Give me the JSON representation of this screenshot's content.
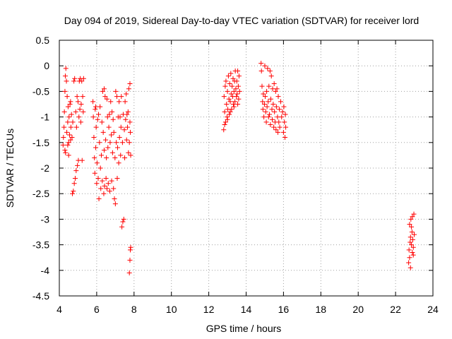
{
  "chart_data": {
    "type": "scatter",
    "title": "Day 094 of 2019, Sidereal Day-to-day VTEC variation (SDTVAR) for receiver lord",
    "xlabel": "GPS time / hours",
    "ylabel": "SDTVAR / TECUs",
    "xlim": [
      4,
      24
    ],
    "ylim": [
      -4.5,
      0.5
    ],
    "x_ticks": [
      "4",
      "6",
      "8",
      "10",
      "12",
      "14",
      "16",
      "18",
      "20",
      "22",
      "24"
    ],
    "y_ticks": [
      "0.5",
      "0",
      "-0.5",
      "-1",
      "-1.5",
      "-2",
      "-2.5",
      "-3",
      "-3.5",
      "-4",
      "-4.5"
    ],
    "grid": true,
    "marker": "+",
    "color": "#ff0000",
    "series": [
      {
        "name": "SDTVAR",
        "points": [
          [
            4.2,
            -1.55
          ],
          [
            4.22,
            -1.4
          ],
          [
            4.25,
            -1.2
          ],
          [
            4.27,
            -0.9
          ],
          [
            4.3,
            -0.5
          ],
          [
            4.3,
            -1.65
          ],
          [
            4.32,
            -0.2
          ],
          [
            4.33,
            -1.7
          ],
          [
            4.35,
            -0.05
          ],
          [
            4.38,
            -0.3
          ],
          [
            4.4,
            -1.3
          ],
          [
            4.42,
            -0.6
          ],
          [
            4.45,
            -1.1
          ],
          [
            4.47,
            -0.8
          ],
          [
            4.5,
            -1.5
          ],
          [
            4.52,
            -1.0
          ],
          [
            4.55,
            -1.35
          ],
          [
            4.57,
            -0.75
          ],
          [
            4.6,
            -1.45
          ],
          [
            4.62,
            -1.2
          ],
          [
            4.65,
            -0.95
          ],
          [
            4.68,
            -1.4
          ],
          [
            4.7,
            -2.5
          ],
          [
            4.72,
            -1.1
          ],
          [
            4.75,
            -2.45
          ],
          [
            4.78,
            -0.3
          ],
          [
            4.8,
            -2.3
          ],
          [
            4.82,
            -0.25
          ],
          [
            4.85,
            -2.2
          ],
          [
            4.88,
            -0.9
          ],
          [
            4.9,
            -2.05
          ],
          [
            4.92,
            -1.2
          ],
          [
            4.95,
            -0.6
          ],
          [
            4.97,
            -1.95
          ],
          [
            5.0,
            -0.7
          ],
          [
            5.02,
            -1.85
          ],
          [
            5.05,
            -1.0
          ],
          [
            5.07,
            -0.3
          ],
          [
            5.1,
            -0.85
          ],
          [
            5.12,
            -0.25
          ],
          [
            5.15,
            -1.1
          ],
          [
            5.17,
            -0.75
          ],
          [
            5.2,
            -0.3
          ],
          [
            5.22,
            -1.85
          ],
          [
            5.25,
            -0.6
          ],
          [
            5.28,
            -0.9
          ],
          [
            5.3,
            -0.25
          ],
          [
            4.45,
            -1.55
          ],
          [
            4.5,
            -1.75
          ],
          [
            4.6,
            -0.7
          ],
          [
            5.8,
            -0.7
          ],
          [
            5.82,
            -1.0
          ],
          [
            5.85,
            -1.4
          ],
          [
            5.88,
            -1.8
          ],
          [
            5.9,
            -2.1
          ],
          [
            5.92,
            -0.85
          ],
          [
            5.95,
            -1.6
          ],
          [
            5.97,
            -1.2
          ],
          [
            6.0,
            -2.3
          ],
          [
            6.02,
            -1.9
          ],
          [
            6.05,
            -1.05
          ],
          [
            6.08,
            -2.2
          ],
          [
            6.1,
            -0.95
          ],
          [
            6.12,
            -2.6
          ],
          [
            6.15,
            -1.5
          ],
          [
            6.18,
            -0.8
          ],
          [
            6.2,
            -2.0
          ],
          [
            6.22,
            -2.4
          ],
          [
            6.25,
            -1.75
          ],
          [
            6.28,
            -1.1
          ],
          [
            6.3,
            -2.25
          ],
          [
            6.32,
            -0.5
          ],
          [
            6.35,
            -1.3
          ],
          [
            6.38,
            -2.5
          ],
          [
            6.4,
            -1.65
          ],
          [
            6.42,
            -2.35
          ],
          [
            6.45,
            -0.6
          ],
          [
            6.48,
            -1.45
          ],
          [
            6.5,
            -2.2
          ],
          [
            6.52,
            -1.8
          ],
          [
            6.55,
            -2.4
          ],
          [
            6.58,
            -1.0
          ],
          [
            6.6,
            -1.6
          ],
          [
            6.62,
            -2.3
          ],
          [
            6.65,
            -1.2
          ],
          [
            6.68,
            -0.95
          ],
          [
            6.7,
            -2.45
          ],
          [
            6.72,
            -1.5
          ],
          [
            6.75,
            -0.7
          ],
          [
            6.78,
            -1.35
          ],
          [
            6.8,
            -2.25
          ],
          [
            6.82,
            -0.9
          ],
          [
            6.85,
            -1.7
          ],
          [
            6.88,
            -1.05
          ],
          [
            6.9,
            -2.4
          ],
          [
            6.92,
            -1.3
          ],
          [
            6.95,
            -2.6
          ],
          [
            6.98,
            -1.8
          ],
          [
            7.0,
            -2.7
          ],
          [
            7.02,
            -0.5
          ],
          [
            7.05,
            -1.5
          ],
          [
            7.08,
            -0.6
          ],
          [
            7.1,
            -2.2
          ],
          [
            7.12,
            -1.6
          ],
          [
            7.15,
            -1.0
          ],
          [
            7.18,
            -1.9
          ],
          [
            7.2,
            -0.7
          ],
          [
            7.22,
            -1.4
          ],
          [
            7.25,
            -1.0
          ],
          [
            7.28,
            -1.75
          ],
          [
            7.3,
            -1.2
          ],
          [
            7.32,
            -0.6
          ],
          [
            7.35,
            -3.15
          ],
          [
            7.38,
            -1.5
          ],
          [
            7.4,
            -3.05
          ],
          [
            7.42,
            -0.95
          ],
          [
            7.45,
            -3.0
          ],
          [
            7.48,
            -1.25
          ],
          [
            7.5,
            -1.8
          ],
          [
            7.52,
            -0.7
          ],
          [
            7.55,
            -1.05
          ],
          [
            7.58,
            -0.55
          ],
          [
            7.6,
            -1.45
          ],
          [
            7.62,
            -0.95
          ],
          [
            7.65,
            -1.2
          ],
          [
            7.68,
            -0.9
          ],
          [
            7.7,
            -1.7
          ],
          [
            7.72,
            -0.45
          ],
          [
            7.75,
            -1.5
          ],
          [
            7.78,
            -0.35
          ],
          [
            7.8,
            -1.3
          ],
          [
            7.82,
            -1.75
          ],
          [
            7.75,
            -4.05
          ],
          [
            7.78,
            -3.8
          ],
          [
            7.8,
            -3.6
          ],
          [
            7.82,
            -3.55
          ],
          [
            7.78,
            -1.1
          ],
          [
            6.4,
            -0.45
          ],
          [
            6.55,
            -0.65
          ],
          [
            5.95,
            -0.8
          ],
          [
            12.8,
            -1.25
          ],
          [
            12.82,
            -0.6
          ],
          [
            12.85,
            -0.9
          ],
          [
            12.88,
            -0.4
          ],
          [
            12.9,
            -1.1
          ],
          [
            12.92,
            -0.3
          ],
          [
            12.95,
            -0.75
          ],
          [
            12.98,
            -1.0
          ],
          [
            13.0,
            -0.5
          ],
          [
            13.02,
            -0.85
          ],
          [
            13.05,
            -0.2
          ],
          [
            13.08,
            -0.65
          ],
          [
            13.1,
            -0.95
          ],
          [
            13.12,
            -0.35
          ],
          [
            13.15,
            -0.7
          ],
          [
            13.18,
            -0.15
          ],
          [
            13.2,
            -0.55
          ],
          [
            13.22,
            -0.85
          ],
          [
            13.25,
            -0.4
          ],
          [
            13.28,
            -0.6
          ],
          [
            13.3,
            -0.25
          ],
          [
            13.32,
            -0.75
          ],
          [
            13.35,
            -0.5
          ],
          [
            13.38,
            -0.3
          ],
          [
            13.4,
            -0.7
          ],
          [
            13.42,
            -0.1
          ],
          [
            13.45,
            -0.45
          ],
          [
            13.48,
            -0.6
          ],
          [
            13.5,
            -0.3
          ],
          [
            13.52,
            -0.55
          ],
          [
            13.55,
            -0.1
          ],
          [
            13.58,
            -0.4
          ],
          [
            13.6,
            -0.65
          ],
          [
            13.62,
            -0.2
          ],
          [
            13.65,
            -0.5
          ],
          [
            12.85,
            -1.15
          ],
          [
            13.0,
            -1.05
          ],
          [
            13.15,
            -0.9
          ],
          [
            13.35,
            -0.8
          ],
          [
            13.55,
            -0.75
          ],
          [
            14.8,
            0.05
          ],
          [
            14.82,
            -0.1
          ],
          [
            14.85,
            -0.4
          ],
          [
            14.88,
            -0.7
          ],
          [
            14.9,
            -0.85
          ],
          [
            14.92,
            -0.55
          ],
          [
            14.95,
            -1.0
          ],
          [
            14.98,
            -0.75
          ],
          [
            15.0,
            0.0
          ],
          [
            15.02,
            -0.6
          ],
          [
            15.05,
            -0.9
          ],
          [
            15.08,
            -1.1
          ],
          [
            15.1,
            -0.5
          ],
          [
            15.12,
            -0.8
          ],
          [
            15.15,
            -0.05
          ],
          [
            15.18,
            -0.7
          ],
          [
            15.2,
            -1.0
          ],
          [
            15.22,
            -0.4
          ],
          [
            15.25,
            -0.95
          ],
          [
            15.28,
            -0.1
          ],
          [
            15.3,
            -1.15
          ],
          [
            15.32,
            -0.65
          ],
          [
            15.35,
            -0.2
          ],
          [
            15.38,
            -0.85
          ],
          [
            15.4,
            -1.05
          ],
          [
            15.42,
            -0.45
          ],
          [
            15.45,
            -0.75
          ],
          [
            15.48,
            -1.2
          ],
          [
            15.5,
            -0.35
          ],
          [
            15.52,
            -0.9
          ],
          [
            15.55,
            -1.1
          ],
          [
            15.58,
            -0.5
          ],
          [
            15.6,
            -1.25
          ],
          [
            15.62,
            -0.8
          ],
          [
            15.65,
            -0.45
          ],
          [
            15.68,
            -1.0
          ],
          [
            15.7,
            -1.3
          ],
          [
            15.72,
            -0.6
          ],
          [
            15.75,
            -1.1
          ],
          [
            15.78,
            -0.85
          ],
          [
            15.8,
            -1.2
          ],
          [
            15.85,
            -0.7
          ],
          [
            15.9,
            -1.0
          ],
          [
            15.95,
            -0.9
          ],
          [
            16.0,
            -1.3
          ],
          [
            16.02,
            -0.8
          ],
          [
            16.05,
            -1.1
          ],
          [
            16.08,
            -1.4
          ],
          [
            16.1,
            -0.95
          ],
          [
            16.12,
            -1.2
          ],
          [
            22.7,
            -3.85
          ],
          [
            22.72,
            -3.6
          ],
          [
            22.75,
            -3.1
          ],
          [
            22.78,
            -3.45
          ],
          [
            22.8,
            -3.95
          ],
          [
            22.82,
            -3.0
          ],
          [
            22.85,
            -3.5
          ],
          [
            22.88,
            -3.25
          ],
          [
            22.9,
            -2.95
          ],
          [
            22.92,
            -3.4
          ],
          [
            22.95,
            -3.7
          ],
          [
            22.98,
            -2.9
          ],
          [
            23.0,
            -3.3
          ],
          [
            22.75,
            -3.75
          ],
          [
            22.85,
            -3.15
          ],
          [
            22.95,
            -3.55
          ],
          [
            22.8,
            -3.35
          ],
          [
            22.9,
            -3.65
          ]
        ]
      }
    ]
  }
}
